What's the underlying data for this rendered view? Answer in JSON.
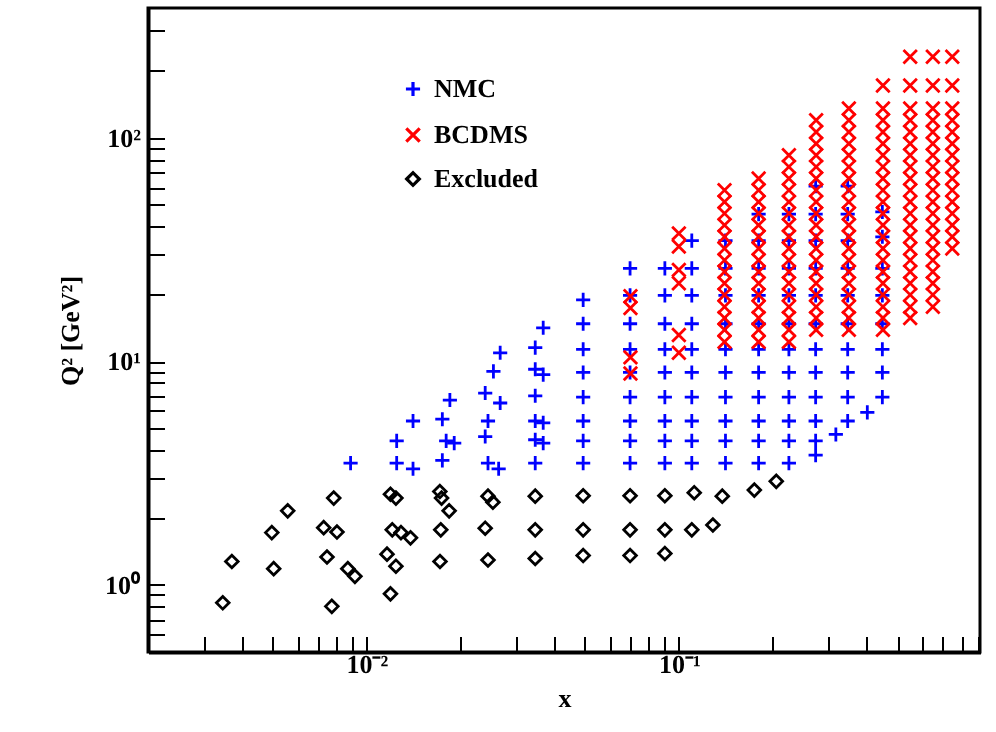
{
  "chart_data": {
    "type": "scatter",
    "xlabel": "x",
    "ylabel": "Q² [GeV²]",
    "log": "xy",
    "grid": false,
    "legend": "top left",
    "xlim": [
      0.002,
      0.92
    ],
    "ylim": [
      0.5,
      380
    ],
    "xticks": [
      {
        "value": 0.003,
        "label": null
      },
      {
        "value": 0.004,
        "label": null
      },
      {
        "value": 0.005,
        "label": null
      },
      {
        "value": 0.006,
        "label": null
      },
      {
        "value": 0.007,
        "label": null
      },
      {
        "value": 0.008,
        "label": null
      },
      {
        "value": 0.009,
        "label": null
      },
      {
        "value": 0.01,
        "label": "10⁻²"
      },
      {
        "value": 0.02,
        "label": null
      },
      {
        "value": 0.03,
        "label": null
      },
      {
        "value": 0.04,
        "label": null
      },
      {
        "value": 0.05,
        "label": null
      },
      {
        "value": 0.06,
        "label": null
      },
      {
        "value": 0.07,
        "label": null
      },
      {
        "value": 0.08,
        "label": null
      },
      {
        "value": 0.09,
        "label": null
      },
      {
        "value": 0.1,
        "label": "10⁻¹"
      },
      {
        "value": 0.2,
        "label": null
      },
      {
        "value": 0.3,
        "label": null
      },
      {
        "value": 0.4,
        "label": null
      },
      {
        "value": 0.5,
        "label": null
      },
      {
        "value": 0.6,
        "label": null
      },
      {
        "value": 0.7,
        "label": null
      },
      {
        "value": 0.8,
        "label": null
      },
      {
        "value": 0.9,
        "label": null
      }
    ],
    "yticks": [
      {
        "value": 0.6,
        "label": null
      },
      {
        "value": 0.7,
        "label": null
      },
      {
        "value": 0.8,
        "label": null
      },
      {
        "value": 0.9,
        "label": null
      },
      {
        "value": 1,
        "label": "10⁰"
      },
      {
        "value": 2,
        "label": null
      },
      {
        "value": 3,
        "label": null
      },
      {
        "value": 4,
        "label": null
      },
      {
        "value": 5,
        "label": null
      },
      {
        "value": 6,
        "label": null
      },
      {
        "value": 7,
        "label": null
      },
      {
        "value": 8,
        "label": null
      },
      {
        "value": 9,
        "label": null
      },
      {
        "value": 10,
        "label": "10¹"
      },
      {
        "value": 20,
        "label": null
      },
      {
        "value": 30,
        "label": null
      },
      {
        "value": 40,
        "label": null
      },
      {
        "value": 50,
        "label": null
      },
      {
        "value": 60,
        "label": null
      },
      {
        "value": 70,
        "label": null
      },
      {
        "value": 80,
        "label": null
      },
      {
        "value": 90,
        "label": null
      },
      {
        "value": 100,
        "label": "10²"
      },
      {
        "value": 200,
        "label": null
      },
      {
        "value": 300,
        "label": null
      }
    ],
    "series": [
      {
        "name": "NMC",
        "color": "#0000ff",
        "marker": "plus",
        "x": [
          0.0089,
          0.0125,
          0.0125,
          0.0141,
          0.0141,
          0.0175,
          0.0175,
          0.0185,
          0.018,
          0.0191,
          0.024,
          0.0255,
          0.0245,
          0.024,
          0.0245,
          0.0265,
          0.0268,
          0.0268,
          0.0347,
          0.0347,
          0.0347,
          0.0347,
          0.0347,
          0.0347,
          0.0368,
          0.0368,
          0.0368,
          0.0368,
          0.0494,
          0.0494,
          0.0494,
          0.0494,
          0.0494,
          0.0494,
          0.0494,
          0.0494,
          0.0698,
          0.0698,
          0.0698,
          0.0698,
          0.0698,
          0.0698,
          0.0698,
          0.0698,
          0.0698,
          0.0902,
          0.0902,
          0.0902,
          0.0902,
          0.0902,
          0.0902,
          0.0902,
          0.0902,
          0.0902,
          0.11,
          0.11,
          0.11,
          0.11,
          0.11,
          0.11,
          0.11,
          0.11,
          0.11,
          0.11,
          0.141,
          0.141,
          0.141,
          0.141,
          0.141,
          0.141,
          0.141,
          0.141,
          0.141,
          0.141,
          0.18,
          0.18,
          0.18,
          0.18,
          0.18,
          0.18,
          0.18,
          0.18,
          0.18,
          0.18,
          0.18,
          0.225,
          0.225,
          0.225,
          0.225,
          0.225,
          0.225,
          0.225,
          0.225,
          0.225,
          0.225,
          0.225,
          0.274,
          0.274,
          0.274,
          0.274,
          0.274,
          0.274,
          0.274,
          0.274,
          0.274,
          0.274,
          0.274,
          0.274,
          0.318,
          0.347,
          0.347,
          0.347,
          0.347,
          0.347,
          0.347,
          0.347,
          0.347,
          0.347,
          0.347,
          0.401,
          0.448,
          0.448,
          0.448,
          0.448,
          0.448,
          0.448,
          0.448,
          0.448
        ],
        "values": [
          3.5,
          4.4,
          3.5,
          5.4,
          3.3,
          5.5,
          3.6,
          6.7,
          4.4,
          4.3,
          7.2,
          9.0,
          5.4,
          4.6,
          3.5,
          3.3,
          6.5,
          10.9,
          9.2,
          11.5,
          7.0,
          5.4,
          4.45,
          3.5,
          8.7,
          14.1,
          5.3,
          4.3,
          3.5,
          4.4,
          5.4,
          6.9,
          8.9,
          11.3,
          14.7,
          18.8,
          3.5,
          4.4,
          5.4,
          6.9,
          8.9,
          11.3,
          14.7,
          19.7,
          26,
          3.5,
          4.4,
          5.4,
          6.9,
          8.9,
          11.3,
          14.7,
          19.7,
          26,
          3.5,
          4.4,
          5.4,
          6.9,
          8.9,
          11.3,
          14.7,
          19.7,
          26,
          34.6,
          3.5,
          4.4,
          5.4,
          6.9,
          8.9,
          11.3,
          14.7,
          19.7,
          26,
          34.6,
          3.5,
          4.4,
          5.4,
          6.9,
          8.9,
          11.3,
          14.7,
          19.7,
          26,
          34.6,
          45.5,
          3.5,
          4.4,
          5.4,
          6.9,
          8.9,
          11.3,
          14.7,
          19.7,
          26,
          34.6,
          45.5,
          3.8,
          4.4,
          5.4,
          6.9,
          8.9,
          11.3,
          14.7,
          19.7,
          26,
          34.6,
          45.5,
          60.7,
          4.7,
          5.4,
          6.9,
          8.9,
          11.3,
          14.7,
          19.7,
          26,
          34.6,
          45.5,
          60.7,
          5.9,
          6.9,
          8.9,
          11.3,
          14.7,
          19.7,
          26,
          36,
          46.5
        ]
      },
      {
        "name": "BCDMS",
        "color": "#ff0000",
        "marker": "cross",
        "x": [
          0.07,
          0.07,
          0.07,
          0.07,
          0.1,
          0.1,
          0.1,
          0.1,
          0.1,
          0.1,
          0.14,
          0.14,
          0.14,
          0.14,
          0.14,
          0.14,
          0.14,
          0.14,
          0.14,
          0.14,
          0.14,
          0.14,
          0.14,
          0.14,
          0.18,
          0.18,
          0.18,
          0.18,
          0.18,
          0.18,
          0.18,
          0.18,
          0.18,
          0.18,
          0.18,
          0.18,
          0.18,
          0.18,
          0.18,
          0.225,
          0.225,
          0.225,
          0.225,
          0.225,
          0.225,
          0.225,
          0.225,
          0.225,
          0.225,
          0.225,
          0.225,
          0.225,
          0.225,
          0.225,
          0.225,
          0.225,
          0.275,
          0.275,
          0.275,
          0.275,
          0.275,
          0.275,
          0.275,
          0.275,
          0.275,
          0.275,
          0.275,
          0.275,
          0.275,
          0.275,
          0.275,
          0.275,
          0.275,
          0.275,
          0.275,
          0.35,
          0.35,
          0.35,
          0.35,
          0.35,
          0.35,
          0.35,
          0.35,
          0.35,
          0.35,
          0.35,
          0.35,
          0.35,
          0.35,
          0.35,
          0.35,
          0.35,
          0.35,
          0.35,
          0.35,
          0.45,
          0.45,
          0.45,
          0.45,
          0.45,
          0.45,
          0.45,
          0.45,
          0.45,
          0.45,
          0.45,
          0.45,
          0.45,
          0.45,
          0.45,
          0.45,
          0.45,
          0.45,
          0.45,
          0.45,
          0.45,
          0.55,
          0.55,
          0.55,
          0.55,
          0.55,
          0.55,
          0.55,
          0.55,
          0.55,
          0.55,
          0.55,
          0.55,
          0.55,
          0.55,
          0.55,
          0.55,
          0.55,
          0.55,
          0.55,
          0.55,
          0.55,
          0.65,
          0.65,
          0.65,
          0.65,
          0.65,
          0.65,
          0.65,
          0.65,
          0.65,
          0.65,
          0.65,
          0.65,
          0.65,
          0.65,
          0.65,
          0.65,
          0.65,
          0.65,
          0.65,
          0.65,
          0.75,
          0.75,
          0.75,
          0.75,
          0.75,
          0.75,
          0.75,
          0.75,
          0.75,
          0.75,
          0.75,
          0.75,
          0.75,
          0.75,
          0.75
        ],
        "values": [
          8.8,
          10.4,
          17.3,
          19.5,
          10.9,
          13.1,
          22.3,
          25.6,
          32.6,
          37.3,
          58.2,
          51.6,
          45.8,
          40.6,
          36.0,
          31.9,
          28.3,
          25.1,
          22.3,
          19.8,
          17.5,
          15.6,
          13.8,
          12.2,
          65.6,
          58.2,
          51.6,
          45.8,
          40.6,
          36.0,
          31.9,
          28.3,
          25.1,
          22.3,
          19.8,
          17.5,
          15.6,
          13.8,
          12.2,
          83.4,
          74,
          65.6,
          58.2,
          51.6,
          45.8,
          40.6,
          36.0,
          31.9,
          28.3,
          25.1,
          22.3,
          19.8,
          17.5,
          15.6,
          13.8,
          12.2,
          119.5,
          106,
          94,
          83.4,
          74,
          65.6,
          58.2,
          51.6,
          45.8,
          40.6,
          36.0,
          31.9,
          28.3,
          25.1,
          22.3,
          19.8,
          17.5,
          15.6,
          13.8,
          135,
          119.5,
          106,
          94,
          83.4,
          74,
          65.6,
          58.2,
          51.6,
          45.8,
          40.6,
          36.0,
          31.9,
          28.3,
          25.1,
          22.3,
          19.8,
          17.5,
          15.6,
          13.8,
          171,
          135,
          119.5,
          106,
          94,
          83.4,
          74,
          65.6,
          58.2,
          51.6,
          45.8,
          40.6,
          36.0,
          31.9,
          28.3,
          25.1,
          22.3,
          19.8,
          17.5,
          15.6,
          13.8,
          230,
          171,
          135,
          119.5,
          106,
          94,
          83.4,
          74,
          65.6,
          58.2,
          51.6,
          45.8,
          40.6,
          36.0,
          31.9,
          28.3,
          25.1,
          22.3,
          19.8,
          17.5,
          15.6,
          230,
          171,
          135,
          119.5,
          106,
          94,
          83.4,
          74,
          65.6,
          58.2,
          51.6,
          45.8,
          40.6,
          36.0,
          31.9,
          28.3,
          25.1,
          22.3,
          19.8,
          17.5,
          230,
          171,
          135,
          119.5,
          106,
          94,
          83.4,
          74,
          65.6,
          58.2,
          51.6,
          45.8,
          40.6,
          36.0,
          31.9
        ]
      },
      {
        "name": "Excluded",
        "color": "#000000",
        "marker": "diamond",
        "x": [
          0.00347,
          0.00371,
          0.00505,
          0.00498,
          0.0056,
          0.0073,
          0.00748,
          0.00805,
          0.00775,
          0.00786,
          0.00872,
          0.00919,
          0.01194,
          0.01243,
          0.0121,
          0.0129,
          0.01384,
          0.01164,
          0.01243,
          0.01194,
          0.01718,
          0.0174,
          0.0184,
          0.0173,
          0.0172,
          0.0245,
          0.0254,
          0.024,
          0.0245,
          0.0347,
          0.0347,
          0.0347,
          0.0494,
          0.0494,
          0.0494,
          0.0698,
          0.0698,
          0.0698,
          0.0902,
          0.0902,
          0.0902,
          0.112,
          0.11,
          0.1377,
          0.1285,
          0.1744,
          0.205
        ],
        "values": [
          0.83,
          1.27,
          1.18,
          1.71,
          2.14,
          1.8,
          1.33,
          1.72,
          0.8,
          2.44,
          1.18,
          1.09,
          2.54,
          2.44,
          1.76,
          1.71,
          1.62,
          1.37,
          1.21,
          0.91,
          2.61,
          2.44,
          2.14,
          1.76,
          1.27,
          2.49,
          2.34,
          1.79,
          1.29,
          2.49,
          1.76,
          1.31,
          2.5,
          1.76,
          1.35,
          2.5,
          1.76,
          1.35,
          2.5,
          1.76,
          1.38,
          2.58,
          1.76,
          2.49,
          1.85,
          2.65,
          2.9
        ]
      }
    ]
  }
}
